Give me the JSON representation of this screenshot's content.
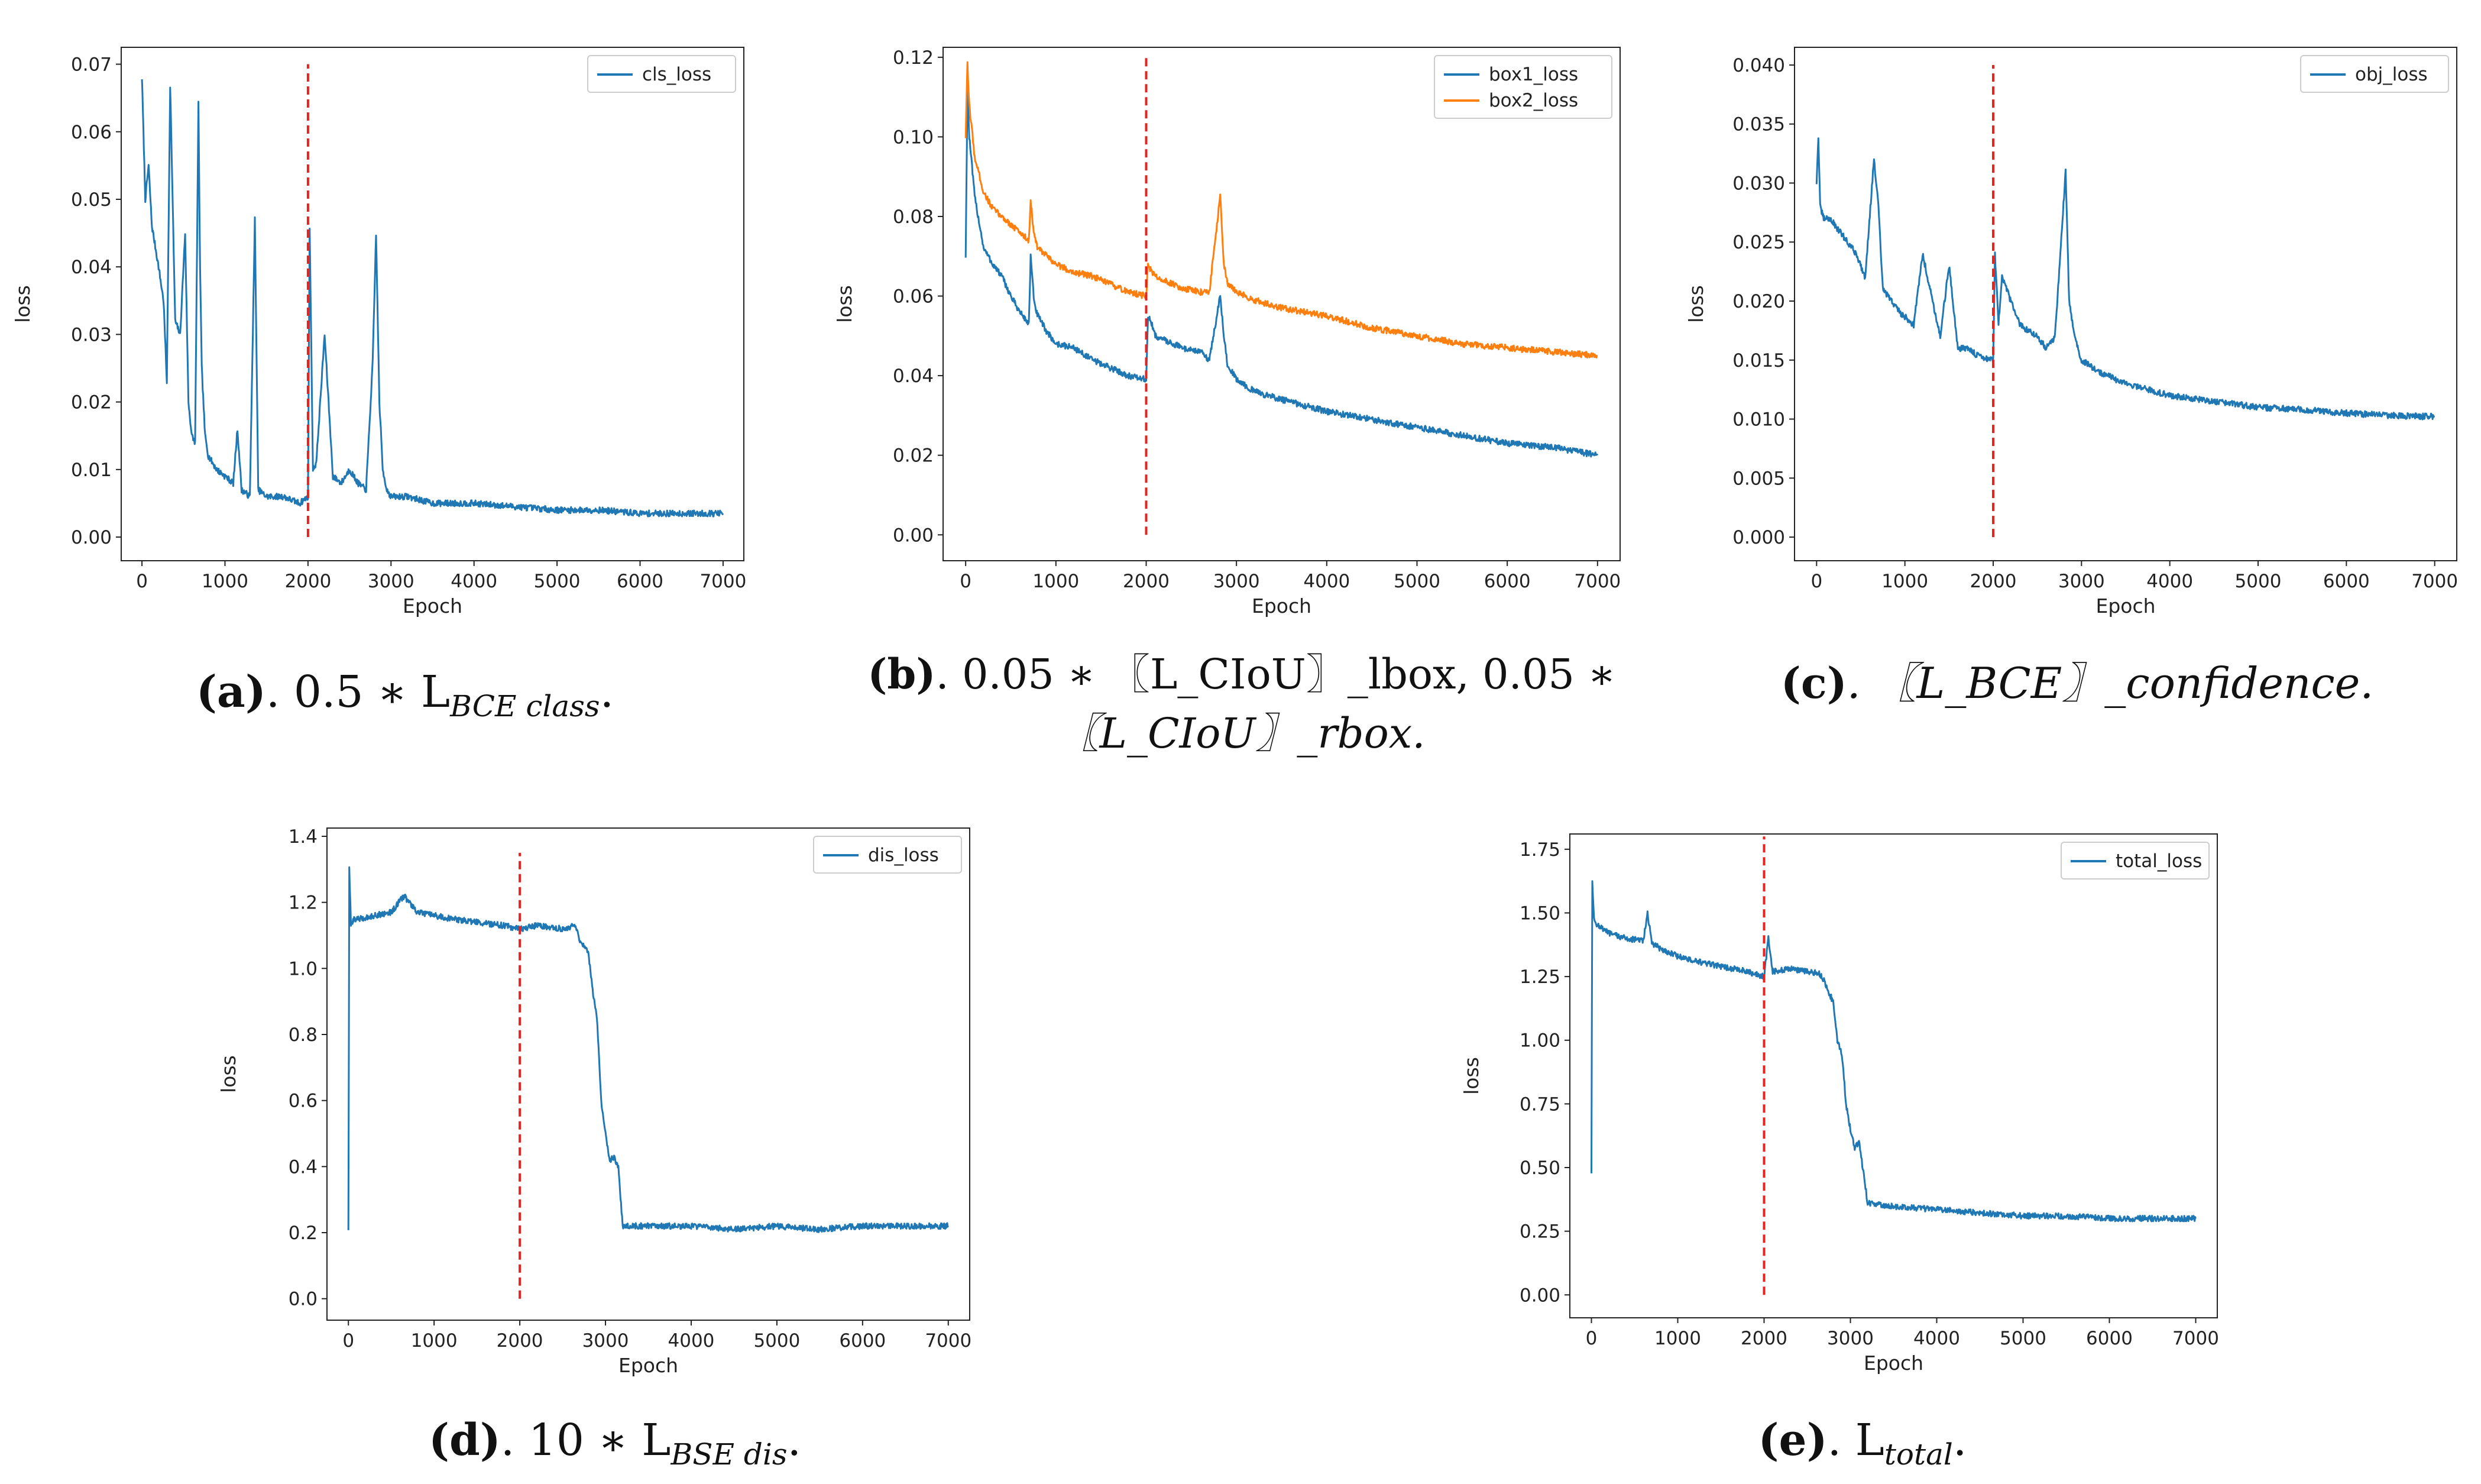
{
  "colors": {
    "blue": "#1f77b4",
    "orange": "#ff7f0e",
    "marker": "#e8221c"
  },
  "chart_data": [
    {
      "id": "a",
      "type": "line",
      "xlabel": "Epoch",
      "ylabel": "loss",
      "xlim": [
        -250,
        7250
      ],
      "ylim": [
        -0.0035,
        0.0725
      ],
      "xticks": [
        0,
        1000,
        2000,
        3000,
        4000,
        5000,
        6000,
        7000
      ],
      "yticks": [
        0.0,
        0.01,
        0.02,
        0.03,
        0.04,
        0.05,
        0.06,
        0.07
      ],
      "ytick_labels": [
        "0.00",
        "0.01",
        "0.02",
        "0.03",
        "0.04",
        "0.05",
        "0.06",
        "0.07"
      ],
      "marker_x": 2000,
      "marker_y": [
        0.0,
        0.07
      ],
      "legend_position": "top-right",
      "series": [
        {
          "name": "cls_loss",
          "color": "#1f77b4",
          "x": [
            0,
            40,
            80,
            120,
            160,
            200,
            260,
            300,
            340,
            400,
            460,
            520,
            560,
            600,
            640,
            680,
            700,
            720,
            760,
            800,
            900,
            1000,
            1100,
            1150,
            1200,
            1300,
            1360,
            1400,
            1500,
            1600,
            1700,
            1800,
            1900,
            2000,
            2020,
            2060,
            2100,
            2200,
            2300,
            2400,
            2500,
            2600,
            2700,
            2780,
            2820,
            2860,
            2900,
            2950,
            3000,
            3200,
            3500,
            4000,
            4500,
            5000,
            5500,
            6000,
            6500,
            7000
          ],
          "values": [
            0.068,
            0.05,
            0.055,
            0.046,
            0.043,
            0.04,
            0.035,
            0.023,
            0.067,
            0.032,
            0.03,
            0.045,
            0.02,
            0.015,
            0.014,
            0.064,
            0.04,
            0.025,
            0.015,
            0.012,
            0.01,
            0.009,
            0.008,
            0.016,
            0.007,
            0.006,
            0.047,
            0.007,
            0.006,
            0.006,
            0.006,
            0.0055,
            0.005,
            0.006,
            0.046,
            0.01,
            0.011,
            0.03,
            0.009,
            0.008,
            0.01,
            0.008,
            0.007,
            0.026,
            0.045,
            0.02,
            0.01,
            0.007,
            0.006,
            0.006,
            0.005,
            0.005,
            0.0045,
            0.004,
            0.004,
            0.0035,
            0.0035,
            0.0035
          ]
        }
      ]
    },
    {
      "id": "b",
      "type": "line",
      "xlabel": "Epoch",
      "ylabel": "loss",
      "xlim": [
        -250,
        7250
      ],
      "ylim": [
        -0.0065,
        0.1225
      ],
      "xticks": [
        0,
        1000,
        2000,
        3000,
        4000,
        5000,
        6000,
        7000
      ],
      "yticks": [
        0.0,
        0.02,
        0.04,
        0.06,
        0.08,
        0.1,
        0.12
      ],
      "ytick_labels": [
        "0.00",
        "0.02",
        "0.04",
        "0.06",
        "0.08",
        "0.10",
        "0.12"
      ],
      "marker_x": 2000,
      "marker_y": [
        0.0,
        0.12
      ],
      "legend_position": "top-right",
      "series": [
        {
          "name": "box1_loss",
          "color": "#1f77b4",
          "x": [
            0,
            20,
            40,
            100,
            200,
            300,
            400,
            500,
            600,
            700,
            720,
            760,
            800,
            900,
            1000,
            1200,
            1400,
            1600,
            1800,
            2000,
            2020,
            2060,
            2100,
            2200,
            2300,
            2400,
            2600,
            2700,
            2820,
            2860,
            2900,
            3000,
            3200,
            3500,
            4000,
            4500,
            5000,
            5500,
            6000,
            6500,
            7000
          ],
          "values": [
            0.07,
            0.112,
            0.1,
            0.085,
            0.072,
            0.068,
            0.065,
            0.06,
            0.056,
            0.053,
            0.07,
            0.058,
            0.055,
            0.051,
            0.048,
            0.047,
            0.044,
            0.042,
            0.04,
            0.039,
            0.055,
            0.053,
            0.05,
            0.049,
            0.048,
            0.047,
            0.046,
            0.044,
            0.06,
            0.05,
            0.043,
            0.039,
            0.036,
            0.034,
            0.031,
            0.029,
            0.027,
            0.025,
            0.023,
            0.022,
            0.02
          ]
        },
        {
          "name": "box2_loss",
          "color": "#ff7f0e",
          "x": [
            0,
            20,
            40,
            100,
            200,
            300,
            400,
            500,
            600,
            700,
            720,
            760,
            800,
            900,
            1000,
            1200,
            1400,
            1600,
            1800,
            2000,
            2020,
            2060,
            2100,
            2200,
            2300,
            2400,
            2600,
            2700,
            2820,
            2860,
            2900,
            3000,
            3200,
            3500,
            4000,
            4500,
            5000,
            5500,
            6000,
            6500,
            7000
          ],
          "values": [
            0.1,
            0.118,
            0.108,
            0.095,
            0.086,
            0.082,
            0.08,
            0.078,
            0.076,
            0.074,
            0.084,
            0.075,
            0.072,
            0.07,
            0.068,
            0.066,
            0.065,
            0.063,
            0.061,
            0.06,
            0.068,
            0.066,
            0.065,
            0.064,
            0.063,
            0.062,
            0.061,
            0.061,
            0.085,
            0.068,
            0.063,
            0.061,
            0.059,
            0.057,
            0.055,
            0.052,
            0.05,
            0.048,
            0.047,
            0.046,
            0.045
          ]
        }
      ]
    },
    {
      "id": "c",
      "type": "line",
      "xlabel": "Epoch",
      "ylabel": "loss",
      "xlim": [
        -250,
        7250
      ],
      "ylim": [
        -0.002,
        0.0415
      ],
      "xticks": [
        0,
        1000,
        2000,
        3000,
        4000,
        5000,
        6000,
        7000
      ],
      "yticks": [
        0.0,
        0.005,
        0.01,
        0.015,
        0.02,
        0.025,
        0.03,
        0.035,
        0.04
      ],
      "ytick_labels": [
        "0.000",
        "0.005",
        "0.010",
        "0.015",
        "0.020",
        "0.025",
        "0.030",
        "0.035",
        "0.040"
      ],
      "marker_x": 2000,
      "marker_y": [
        0.0,
        0.04
      ],
      "legend_position": "top-right",
      "series": [
        {
          "name": "obj_loss",
          "color": "#1f77b4",
          "x": [
            0,
            20,
            40,
            80,
            150,
            250,
            350,
            450,
            550,
            650,
            700,
            750,
            850,
            950,
            1100,
            1200,
            1400,
            1500,
            1600,
            1700,
            1800,
            1900,
            2000,
            2020,
            2060,
            2100,
            2200,
            2300,
            2500,
            2600,
            2700,
            2820,
            2860,
            2920,
            3000,
            3200,
            3500,
            4000,
            4500,
            5000,
            5500,
            6000,
            6500,
            7000
          ],
          "values": [
            0.03,
            0.034,
            0.028,
            0.027,
            0.027,
            0.026,
            0.025,
            0.024,
            0.022,
            0.032,
            0.028,
            0.021,
            0.02,
            0.019,
            0.018,
            0.024,
            0.017,
            0.023,
            0.016,
            0.016,
            0.0155,
            0.0152,
            0.015,
            0.024,
            0.018,
            0.022,
            0.02,
            0.018,
            0.017,
            0.016,
            0.017,
            0.031,
            0.02,
            0.017,
            0.015,
            0.014,
            0.013,
            0.012,
            0.0115,
            0.011,
            0.0108,
            0.0105,
            0.0103,
            0.0102
          ]
        }
      ]
    },
    {
      "id": "d",
      "type": "line",
      "xlabel": "Epoch",
      "ylabel": "loss",
      "xlim": [
        -250,
        7250
      ],
      "ylim": [
        -0.065,
        1.425
      ],
      "xticks": [
        0,
        1000,
        2000,
        3000,
        4000,
        5000,
        6000,
        7000
      ],
      "yticks": [
        0.0,
        0.2,
        0.4,
        0.6,
        0.8,
        1.0,
        1.2,
        1.4
      ],
      "ytick_labels": [
        "0.0",
        "0.2",
        "0.4",
        "0.6",
        "0.8",
        "1.0",
        "1.2",
        "1.4"
      ],
      "marker_x": 2000,
      "marker_y": [
        0.0,
        1.35
      ],
      "legend_position": "top-right",
      "series": [
        {
          "name": "dis_loss",
          "color": "#1f77b4",
          "x": [
            0,
            10,
            30,
            60,
            150,
            300,
            500,
            650,
            800,
            1000,
            1200,
            1500,
            1800,
            2000,
            2200,
            2500,
            2650,
            2700,
            2800,
            2850,
            2900,
            2950,
            3000,
            3050,
            3100,
            3150,
            3200,
            3300,
            3600,
            4000,
            4500,
            5000,
            5500,
            6000,
            6500,
            7000
          ],
          "values": [
            0.21,
            1.3,
            1.13,
            1.15,
            1.15,
            1.16,
            1.17,
            1.22,
            1.17,
            1.16,
            1.15,
            1.14,
            1.13,
            1.12,
            1.13,
            1.12,
            1.13,
            1.08,
            1.05,
            0.93,
            0.85,
            0.6,
            0.5,
            0.42,
            0.43,
            0.4,
            0.22,
            0.22,
            0.22,
            0.22,
            0.21,
            0.22,
            0.21,
            0.22,
            0.22,
            0.22
          ]
        }
      ]
    },
    {
      "id": "e",
      "type": "line",
      "xlabel": "Epoch",
      "ylabel": "loss",
      "xlim": [
        -250,
        7250
      ],
      "ylim": [
        -0.09,
        1.81
      ],
      "xticks": [
        0,
        1000,
        2000,
        3000,
        4000,
        5000,
        6000,
        7000
      ],
      "yticks": [
        0.0,
        0.25,
        0.5,
        0.75,
        1.0,
        1.25,
        1.5,
        1.75
      ],
      "ytick_labels": [
        "0.00",
        "0.25",
        "0.50",
        "0.75",
        "1.00",
        "1.25",
        "1.50",
        "1.75"
      ],
      "marker_x": 2000,
      "marker_y": [
        0.0,
        1.8
      ],
      "legend_position": "top-right",
      "series": [
        {
          "name": "total_loss",
          "color": "#1f77b4",
          "x": [
            0,
            10,
            30,
            80,
            200,
            400,
            600,
            650,
            700,
            800,
            1000,
            1200,
            1500,
            1800,
            2000,
            2050,
            2100,
            2300,
            2500,
            2650,
            2700,
            2800,
            2850,
            2900,
            2950,
            3000,
            3050,
            3100,
            3150,
            3200,
            3400,
            3800,
            4200,
            4600,
            5000,
            5500,
            6000,
            6500,
            7000
          ],
          "values": [
            0.48,
            1.63,
            1.47,
            1.45,
            1.42,
            1.4,
            1.39,
            1.5,
            1.38,
            1.36,
            1.33,
            1.31,
            1.29,
            1.27,
            1.25,
            1.4,
            1.27,
            1.28,
            1.27,
            1.26,
            1.23,
            1.15,
            1.0,
            0.95,
            0.75,
            0.65,
            0.58,
            0.6,
            0.48,
            0.36,
            0.35,
            0.34,
            0.33,
            0.32,
            0.31,
            0.31,
            0.3,
            0.3,
            0.3
          ]
        }
      ]
    }
  ],
  "captions": [
    {
      "label": "(a)",
      "text": ". 0.5 ∗ L",
      "sub": "BCE class",
      "end": "."
    },
    {
      "label": "(b)",
      "text": ". 0.05 ∗ 〖L_CIoU〗_lbox, 0.05 ∗",
      "line2": "〖L_CIoU〗_rbox."
    },
    {
      "label": "(c)",
      "text": ". 〖L_BCE〗_confidence."
    },
    {
      "label": "(d)",
      "text": ". 10 ∗ L",
      "sub": "BSE dis",
      "end": "."
    },
    {
      "label": "(e)",
      "text": ". L",
      "sub": "total",
      "end": "."
    }
  ]
}
